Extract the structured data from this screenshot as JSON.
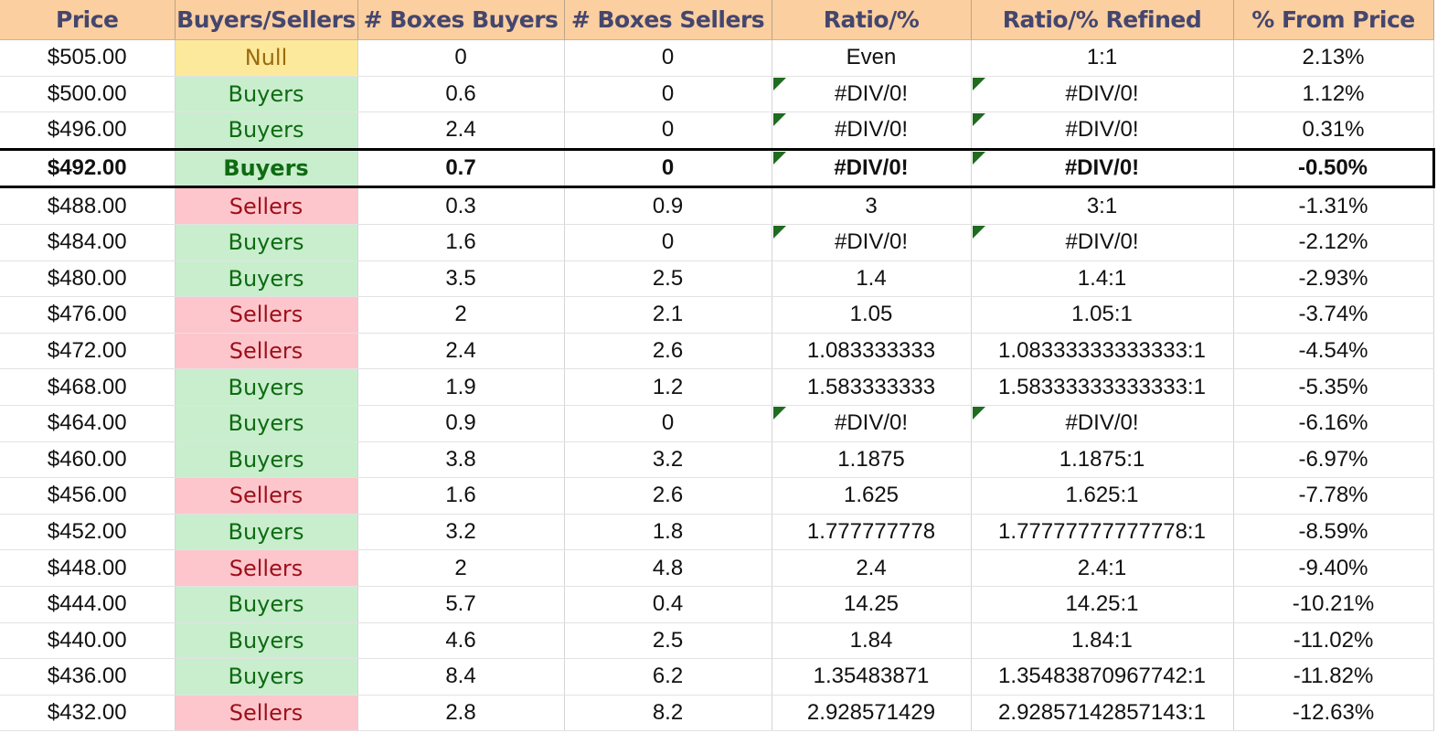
{
  "headers": [
    "Price",
    "Buyers/Sellers",
    "# Boxes Buyers",
    "# Boxes Sellers",
    "Ratio/%",
    "Ratio/% Refined",
    "% From Price"
  ],
  "colors": {
    "header_bg": "#fbcfa0",
    "header_text": "#44466e",
    "buyers_bg": "#c8eecd",
    "buyers_text": "#0f6a12",
    "sellers_bg": "#fdc6cc",
    "sellers_text": "#9c0f1a",
    "null_bg": "#fde99c",
    "null_text": "#9a6a0c",
    "error_flag": "#1f6b1f"
  },
  "rows": [
    {
      "price": "$505.00",
      "side": "Null",
      "buyers": "0",
      "sellers": "0",
      "ratio": "Even",
      "refined": "1:1",
      "from_price": "2.13%"
    },
    {
      "price": "$500.00",
      "side": "Buyers",
      "buyers": "0.6",
      "sellers": "0",
      "ratio": "#DIV/0!",
      "refined": "#DIV/0!",
      "from_price": "1.12%"
    },
    {
      "price": "$496.00",
      "side": "Buyers",
      "buyers": "2.4",
      "sellers": "0",
      "ratio": "#DIV/0!",
      "refined": "#DIV/0!",
      "from_price": "0.31%"
    },
    {
      "price": "$492.00",
      "side": "Buyers",
      "buyers": "0.7",
      "sellers": "0",
      "ratio": "#DIV/0!",
      "refined": "#DIV/0!",
      "from_price": "-0.50%",
      "current": true
    },
    {
      "price": "$488.00",
      "side": "Sellers",
      "buyers": "0.3",
      "sellers": "0.9",
      "ratio": "3",
      "refined": "3:1",
      "from_price": "-1.31%"
    },
    {
      "price": "$484.00",
      "side": "Buyers",
      "buyers": "1.6",
      "sellers": "0",
      "ratio": "#DIV/0!",
      "refined": "#DIV/0!",
      "from_price": "-2.12%"
    },
    {
      "price": "$480.00",
      "side": "Buyers",
      "buyers": "3.5",
      "sellers": "2.5",
      "ratio": "1.4",
      "refined": "1.4:1",
      "from_price": "-2.93%"
    },
    {
      "price": "$476.00",
      "side": "Sellers",
      "buyers": "2",
      "sellers": "2.1",
      "ratio": "1.05",
      "refined": "1.05:1",
      "from_price": "-3.74%"
    },
    {
      "price": "$472.00",
      "side": "Sellers",
      "buyers": "2.4",
      "sellers": "2.6",
      "ratio": "1.083333333",
      "refined": "1.08333333333333:1",
      "from_price": "-4.54%"
    },
    {
      "price": "$468.00",
      "side": "Buyers",
      "buyers": "1.9",
      "sellers": "1.2",
      "ratio": "1.583333333",
      "refined": "1.58333333333333:1",
      "from_price": "-5.35%"
    },
    {
      "price": "$464.00",
      "side": "Buyers",
      "buyers": "0.9",
      "sellers": "0",
      "ratio": "#DIV/0!",
      "refined": "#DIV/0!",
      "from_price": "-6.16%"
    },
    {
      "price": "$460.00",
      "side": "Buyers",
      "buyers": "3.8",
      "sellers": "3.2",
      "ratio": "1.1875",
      "refined": "1.1875:1",
      "from_price": "-6.97%"
    },
    {
      "price": "$456.00",
      "side": "Sellers",
      "buyers": "1.6",
      "sellers": "2.6",
      "ratio": "1.625",
      "refined": "1.625:1",
      "from_price": "-7.78%"
    },
    {
      "price": "$452.00",
      "side": "Buyers",
      "buyers": "3.2",
      "sellers": "1.8",
      "ratio": "1.777777778",
      "refined": "1.77777777777778:1",
      "from_price": "-8.59%"
    },
    {
      "price": "$448.00",
      "side": "Sellers",
      "buyers": "2",
      "sellers": "4.8",
      "ratio": "2.4",
      "refined": "2.4:1",
      "from_price": "-9.40%"
    },
    {
      "price": "$444.00",
      "side": "Buyers",
      "buyers": "5.7",
      "sellers": "0.4",
      "ratio": "14.25",
      "refined": "14.25:1",
      "from_price": "-10.21%"
    },
    {
      "price": "$440.00",
      "side": "Buyers",
      "buyers": "4.6",
      "sellers": "2.5",
      "ratio": "1.84",
      "refined": "1.84:1",
      "from_price": "-11.02%"
    },
    {
      "price": "$436.00",
      "side": "Buyers",
      "buyers": "8.4",
      "sellers": "6.2",
      "ratio": "1.35483871",
      "refined": "1.35483870967742:1",
      "from_price": "-11.82%"
    },
    {
      "price": "$432.00",
      "side": "Sellers",
      "buyers": "2.8",
      "sellers": "8.2",
      "ratio": "2.928571429",
      "refined": "2.92857142857143:1",
      "from_price": "-12.63%"
    }
  ]
}
